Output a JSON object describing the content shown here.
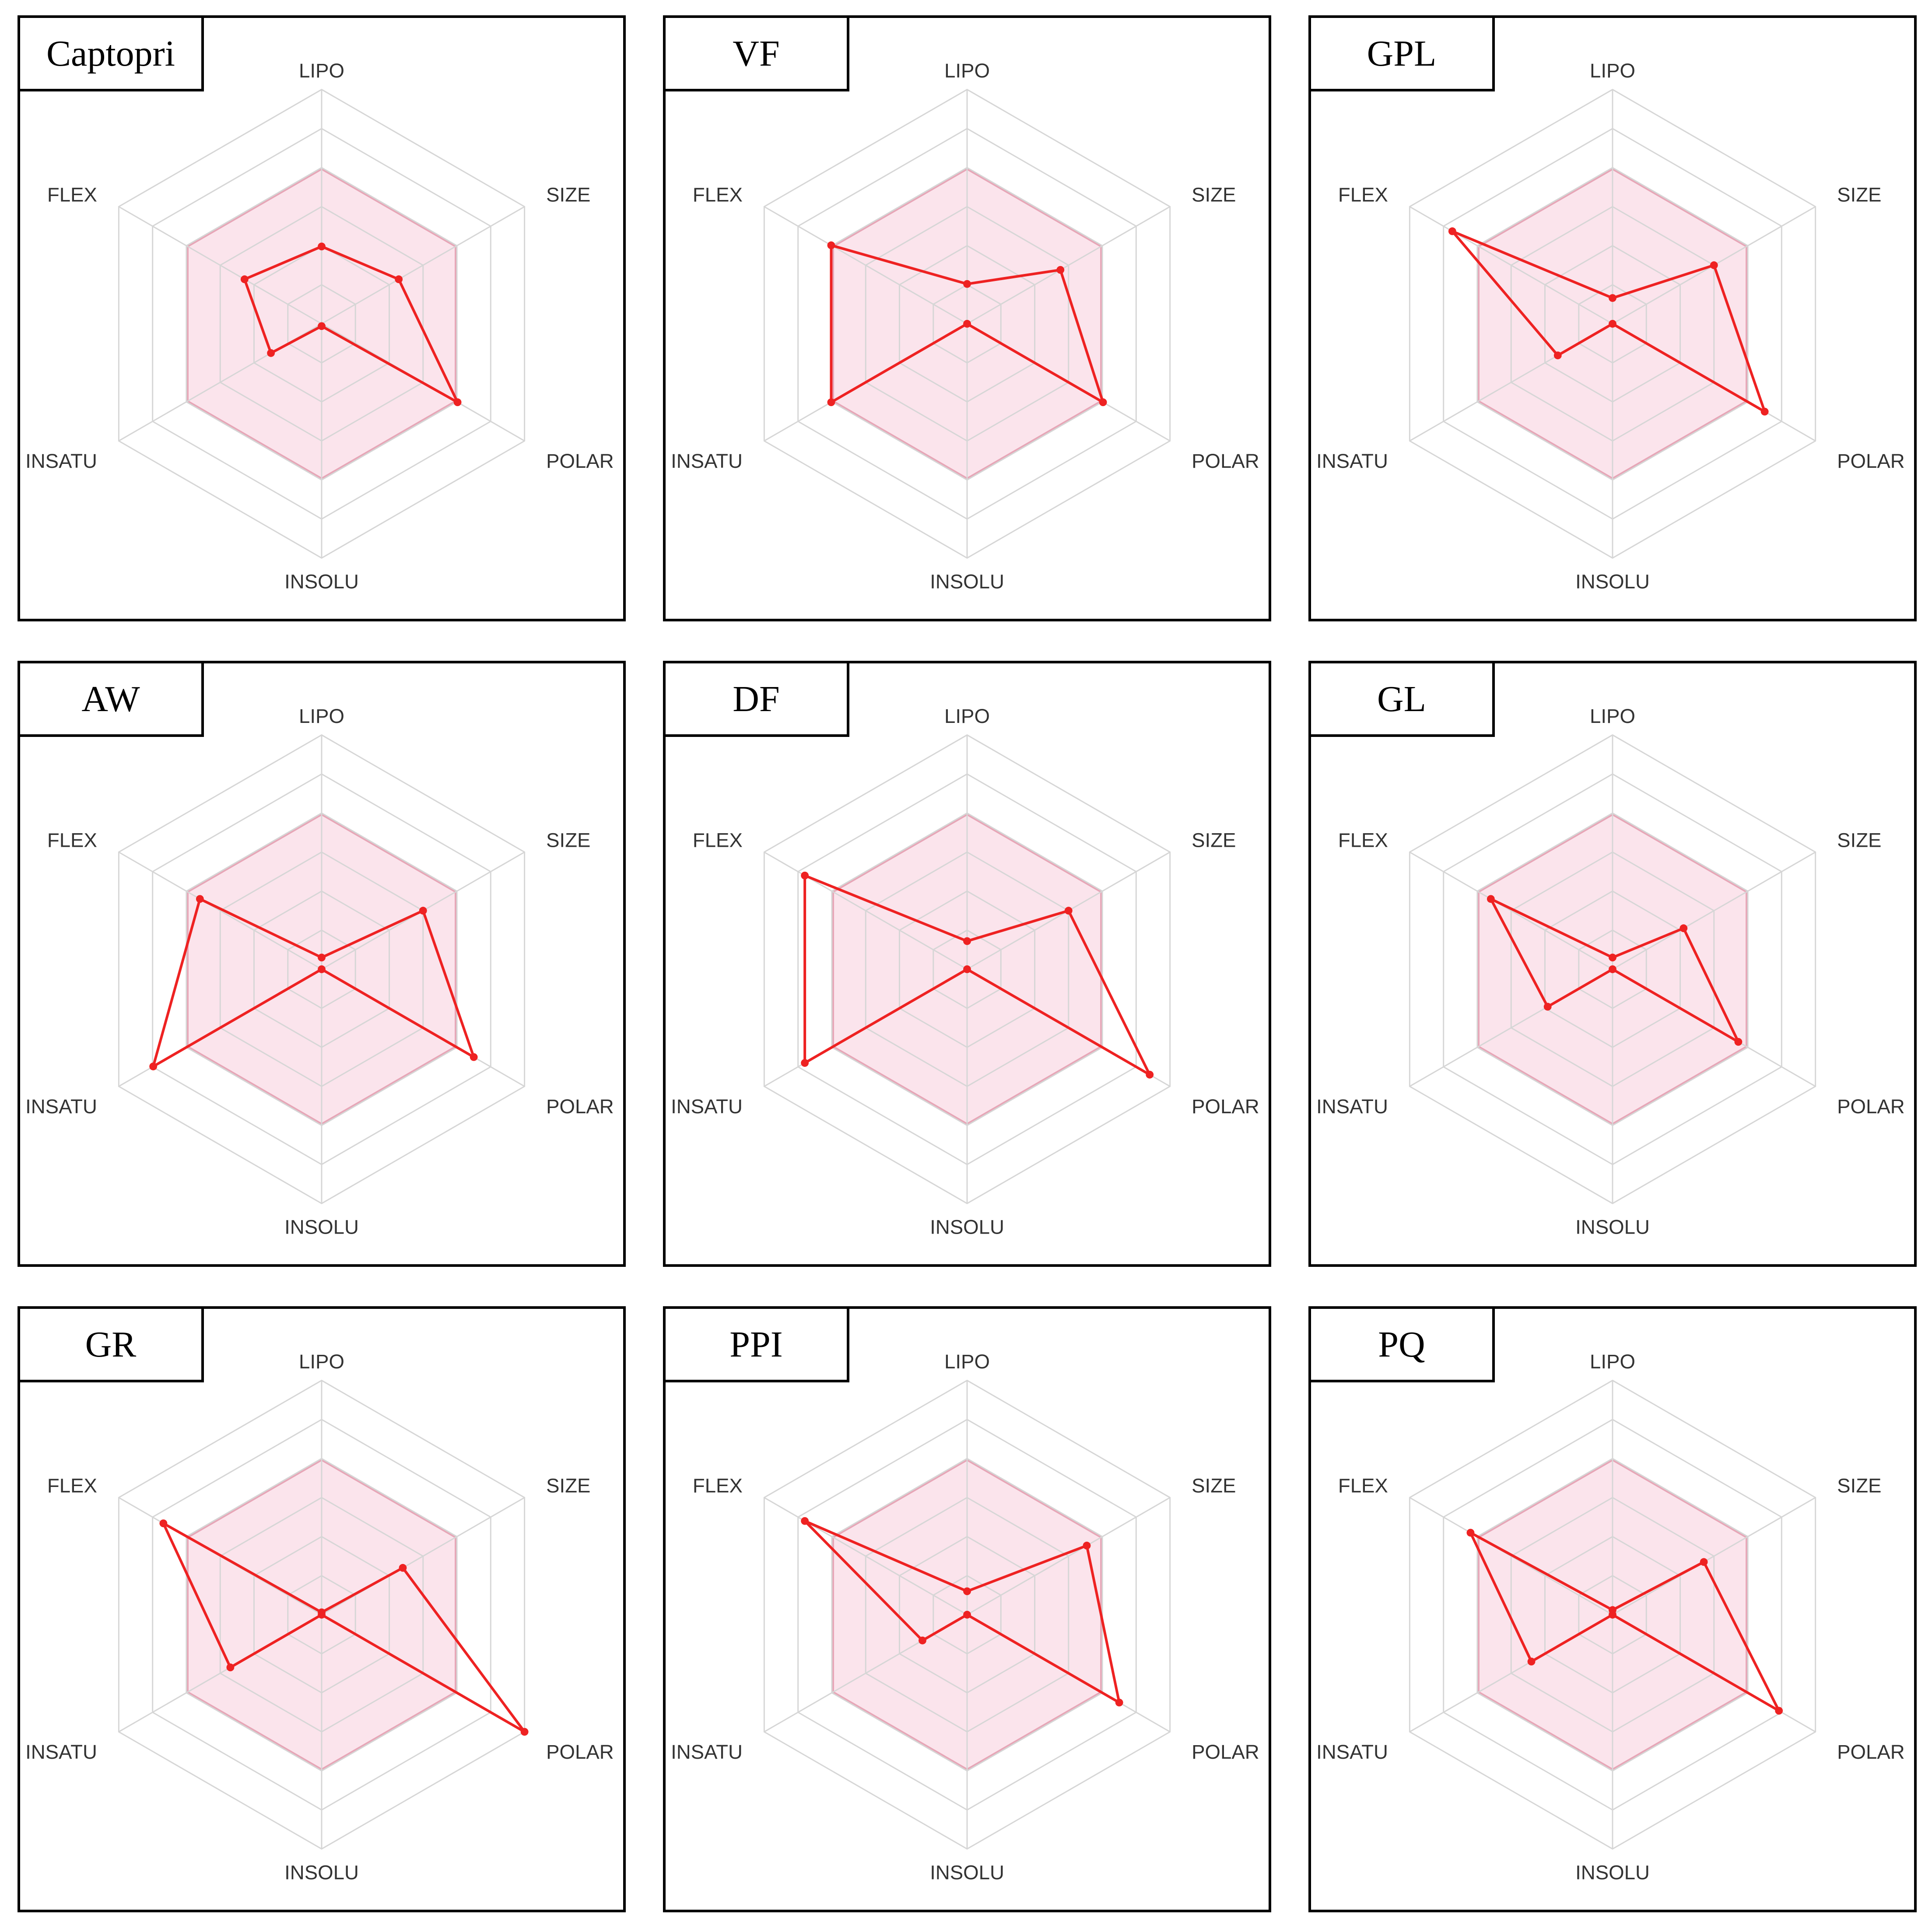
{
  "chart_data": [
    {
      "type": "radar",
      "title": "Captopri",
      "axes": [
        "LIPO",
        "SIZE",
        "POLAR",
        "INSOLU",
        "INSATU",
        "FLEX"
      ],
      "range": [
        0,
        1
      ],
      "optimal_range": [
        0,
        0.66
      ],
      "values": [
        0.33,
        0.38,
        0.67,
        0.01,
        0.25,
        0.38
      ]
    },
    {
      "type": "radar",
      "title": "VF",
      "axes": [
        "LIPO",
        "SIZE",
        "POLAR",
        "INSOLU",
        "INSATU",
        "FLEX"
      ],
      "range": [
        0,
        1
      ],
      "optimal_range": [
        0,
        0.66
      ],
      "values": [
        0.17,
        0.46,
        0.67,
        0.0,
        0.67,
        0.67
      ]
    },
    {
      "type": "radar",
      "title": "GPL",
      "axes": [
        "LIPO",
        "SIZE",
        "POLAR",
        "INSOLU",
        "INSATU",
        "FLEX"
      ],
      "range": [
        0,
        1
      ],
      "optimal_range": [
        0,
        0.66
      ],
      "values": [
        0.11,
        0.5,
        0.75,
        0.0,
        0.27,
        0.79
      ]
    },
    {
      "type": "radar",
      "title": "AW",
      "axes": [
        "LIPO",
        "SIZE",
        "POLAR",
        "INSOLU",
        "INSATU",
        "FLEX"
      ],
      "range": [
        0,
        1
      ],
      "optimal_range": [
        0,
        0.66
      ],
      "values": [
        0.05,
        0.5,
        0.75,
        0.0,
        0.83,
        0.6
      ]
    },
    {
      "type": "radar",
      "title": "DF",
      "axes": [
        "LIPO",
        "SIZE",
        "POLAR",
        "INSOLU",
        "INSATU",
        "FLEX"
      ],
      "range": [
        0,
        1
      ],
      "optimal_range": [
        0,
        0.66
      ],
      "values": [
        0.12,
        0.5,
        0.9,
        0.0,
        0.8,
        0.8
      ]
    },
    {
      "type": "radar",
      "title": "GL",
      "axes": [
        "LIPO",
        "SIZE",
        "POLAR",
        "INSOLU",
        "INSATU",
        "FLEX"
      ],
      "range": [
        0,
        1
      ],
      "optimal_range": [
        0,
        0.66
      ],
      "values": [
        0.05,
        0.35,
        0.62,
        0.0,
        0.32,
        0.6
      ]
    },
    {
      "type": "radar",
      "title": "GR",
      "axes": [
        "LIPO",
        "SIZE",
        "POLAR",
        "INSOLU",
        "INSATU",
        "FLEX"
      ],
      "range": [
        0,
        1
      ],
      "optimal_range": [
        0,
        0.66
      ],
      "values": [
        0.01,
        0.4,
        1.0,
        0.0,
        0.45,
        0.78
      ]
    },
    {
      "type": "radar",
      "title": "PPI",
      "axes": [
        "LIPO",
        "SIZE",
        "POLAR",
        "INSOLU",
        "INSATU",
        "FLEX"
      ],
      "range": [
        0,
        1
      ],
      "optimal_range": [
        0,
        0.66
      ],
      "values": [
        0.1,
        0.59,
        0.75,
        0.0,
        0.22,
        0.8
      ]
    },
    {
      "type": "radar",
      "title": "PQ",
      "axes": [
        "LIPO",
        "SIZE",
        "POLAR",
        "INSOLU",
        "INSATU",
        "FLEX"
      ],
      "range": [
        0,
        1
      ],
      "optimal_range": [
        0,
        0.66
      ],
      "values": [
        0.02,
        0.45,
        0.82,
        0.0,
        0.4,
        0.7
      ]
    }
  ],
  "colors": {
    "series_line": "#ee2222",
    "optimal_fill": "#fbe4ec",
    "optimal_edge": "#e7a6b7",
    "grid_line": "#d6d6d6"
  }
}
